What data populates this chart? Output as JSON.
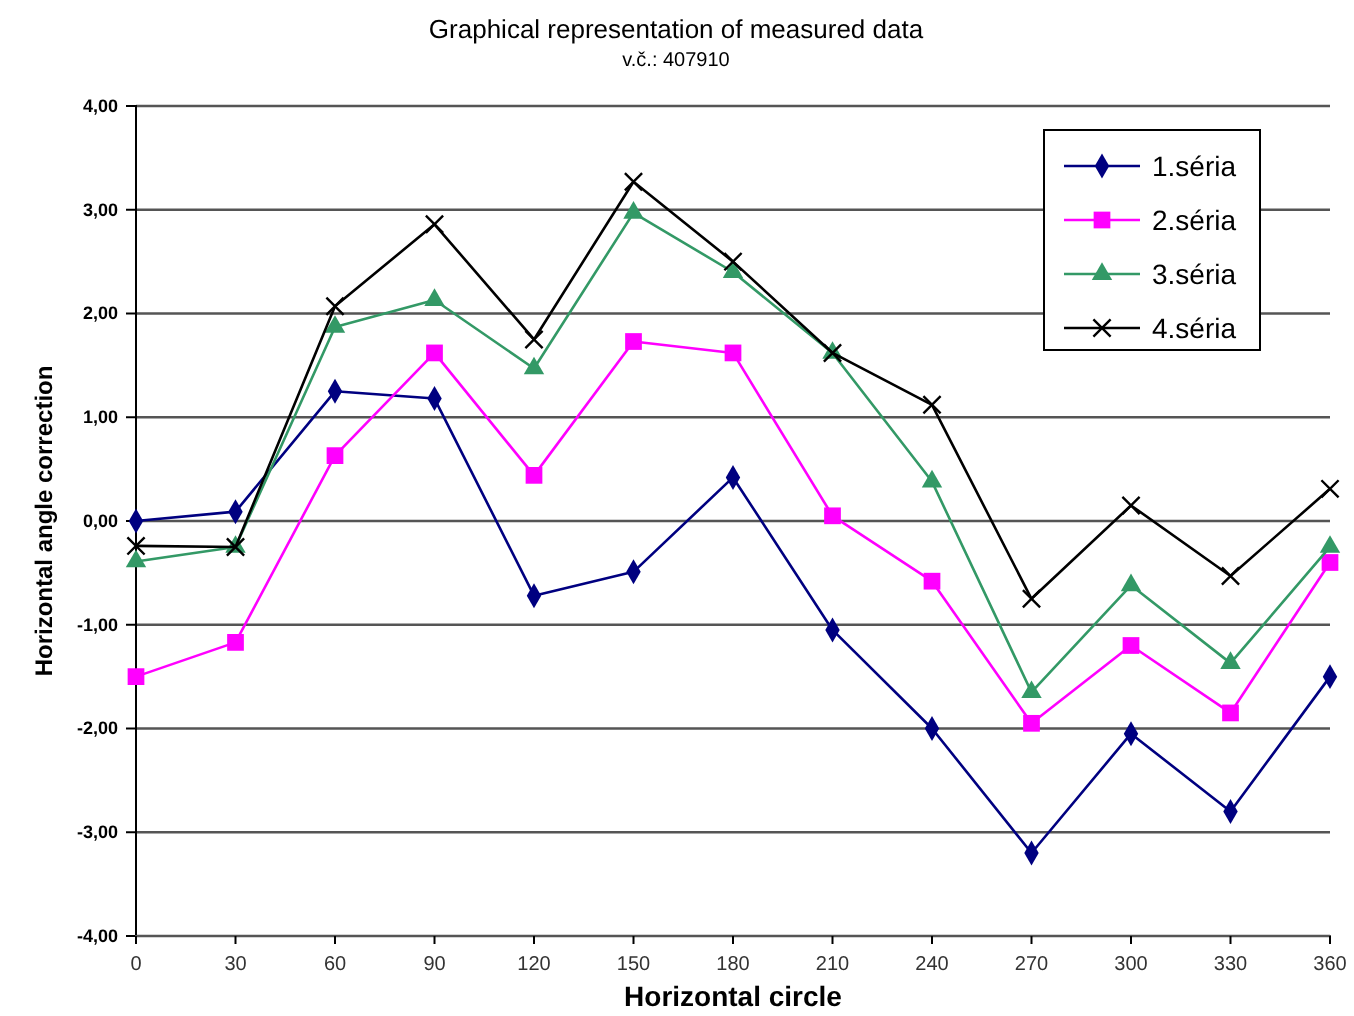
{
  "chart_data": {
    "type": "line",
    "title": "Graphical representation of measured data",
    "subtitle": "v.č.: 407910",
    "xlabel": "Horizontal circle",
    "ylabel": "Horizontal angle correction",
    "x": [
      0,
      30,
      60,
      90,
      120,
      150,
      180,
      210,
      240,
      270,
      300,
      330,
      360
    ],
    "xlim": [
      0,
      360
    ],
    "xticks": [
      0,
      30,
      60,
      90,
      120,
      150,
      180,
      210,
      240,
      270,
      300,
      330,
      360
    ],
    "ylim": [
      -4,
      4
    ],
    "yticks": [
      {
        "value": -4,
        "label": "-4,00"
      },
      {
        "value": -3,
        "label": "-3,00"
      },
      {
        "value": -2,
        "label": "-2,00"
      },
      {
        "value": -1,
        "label": "-1,00"
      },
      {
        "value": 0,
        "label": "0,00"
      },
      {
        "value": 1,
        "label": "1,00"
      },
      {
        "value": 2,
        "label": "2,00"
      },
      {
        "value": 3,
        "label": "3,00"
      },
      {
        "value": 4,
        "label": "4,00"
      }
    ],
    "grid": "y",
    "legend": "top right",
    "series": [
      {
        "name": "1.séria",
        "color": "#000080",
        "marker": "diamond",
        "values": [
          0.0,
          0.09,
          1.25,
          1.18,
          -0.72,
          -0.49,
          0.42,
          -1.05,
          -2.0,
          -3.2,
          -2.05,
          -2.8,
          -1.5
        ]
      },
      {
        "name": "2.séria",
        "color": "#ff00ff",
        "marker": "square",
        "values": [
          -1.5,
          -1.17,
          0.63,
          1.62,
          0.44,
          1.73,
          1.62,
          0.05,
          -0.58,
          -1.95,
          -1.2,
          -1.85,
          -0.4
        ]
      },
      {
        "name": "3.séria",
        "color": "#339966",
        "marker": "triangle",
        "values": [
          -0.39,
          -0.25,
          1.87,
          2.13,
          1.47,
          2.97,
          2.4,
          1.62,
          0.38,
          -1.65,
          -0.62,
          -1.37,
          -0.25
        ]
      },
      {
        "name": "4.séria",
        "color": "#000000",
        "marker": "cross",
        "values": [
          -0.24,
          -0.25,
          2.07,
          2.86,
          1.75,
          3.27,
          2.5,
          1.62,
          1.12,
          -0.75,
          0.15,
          -0.53,
          0.31
        ]
      }
    ]
  }
}
